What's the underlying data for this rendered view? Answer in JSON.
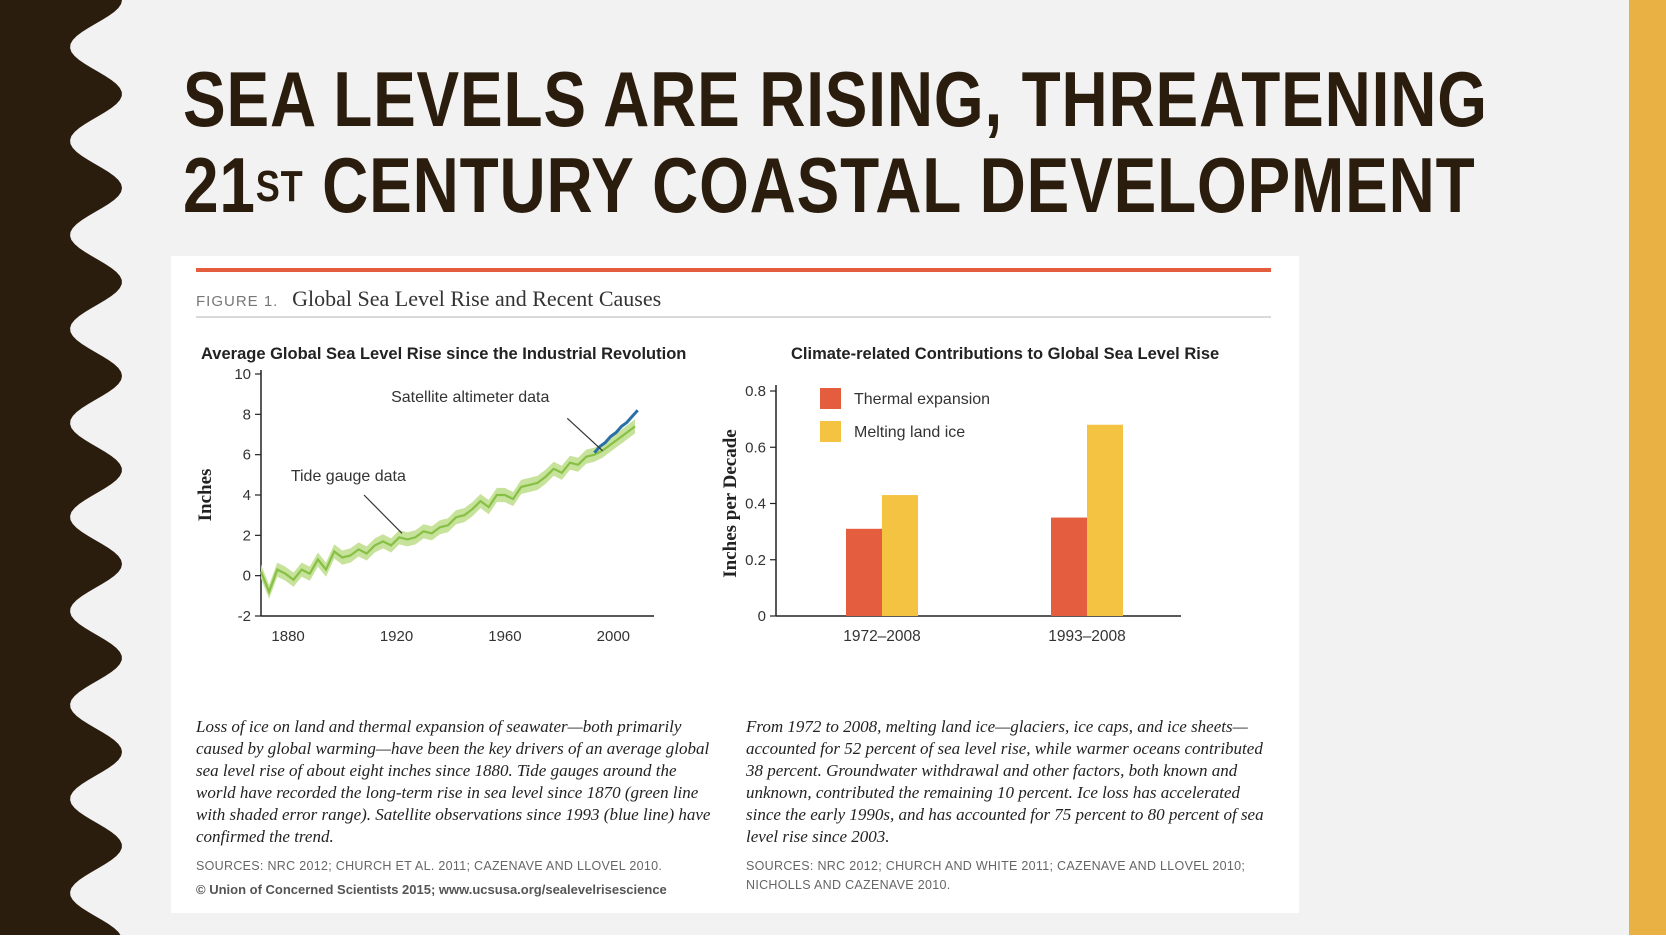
{
  "colors": {
    "left_band": "#2b1d0e",
    "right_band": "#e9b143",
    "title_text": "#2b1d0e",
    "accent_rule": "#e35d3e",
    "thermal": "#e35d3e",
    "ice": "#f4c342",
    "tide_line": "#86c044",
    "tide_band": "#c7e29a",
    "satellite_line": "#2b6fa8"
  },
  "slide": {
    "title_line1": "SEA LEVELS ARE RISING, THREATENING",
    "title_line2_a": "21",
    "title_line2_sup": "ST",
    "title_line2_b": " CENTURY COASTAL DEVELOPMENT"
  },
  "figure": {
    "label": "FIGURE 1.",
    "title": "Global Sea Level Rise and Recent Causes",
    "left_caption": "Loss of ice on land and thermal expansion of seawater—both primarily caused by global warming—have been the key drivers of an average global sea level rise of about eight inches since 1880. Tide gauges around the world have recorded the long-term rise in sea level since 1870 (green line with shaded error range). Satellite observations since 1993 (blue line) have confirmed the trend.",
    "left_sources": "SOURCES: NRC 2012; CHURCH ET AL. 2011; CAZENAVE AND LLOVEL 2010.",
    "copyright": "© Union of Concerned Scientists 2015; www.ucsusa.org/sealevelrisescience",
    "right_caption": "From 1972 to 2008, melting land ice—glaciers, ice caps, and ice sheets—accounted for 52 percent of sea level rise, while warmer oceans contributed 38 percent. Groundwater withdrawal and other factors, both known and unknown, contributed the remaining 10 percent. Ice loss has accelerated since the early 1990s, and has accounted for 75 percent to 80 percent of sea level rise since 2003.",
    "right_sources": "SOURCES: NRC 2012; CHURCH AND WHITE 2011; CAZENAVE AND LLOVEL 2010; NICHOLLS AND CAZENAVE 2010."
  },
  "chart_data": [
    {
      "type": "line",
      "title": "Average Global Sea Level Rise since the Industrial Revolution",
      "xlabel": "",
      "ylabel": "Inches",
      "xlim": [
        1870,
        2015
      ],
      "ylim": [
        -2,
        10
      ],
      "xticks": [
        1880,
        1920,
        1960,
        2000
      ],
      "yticks": [
        -2,
        0,
        2,
        4,
        6,
        8,
        10
      ],
      "grid": false,
      "annotations": [
        "Satellite altimeter data",
        "Tide gauge data"
      ],
      "series": [
        {
          "name": "Tide gauge data",
          "x": [
            1870,
            1873,
            1876,
            1879,
            1882,
            1885,
            1888,
            1891,
            1894,
            1897,
            1900,
            1903,
            1906,
            1909,
            1912,
            1915,
            1918,
            1921,
            1924,
            1927,
            1930,
            1933,
            1936,
            1939,
            1942,
            1945,
            1948,
            1951,
            1954,
            1957,
            1960,
            1963,
            1966,
            1969,
            1972,
            1975,
            1978,
            1981,
            1984,
            1987,
            1990,
            1993,
            1996,
            1999,
            2002,
            2005,
            2008
          ],
          "y": [
            0.2,
            -0.8,
            0.3,
            0.1,
            -0.2,
            0.3,
            0.1,
            0.8,
            0.3,
            1.2,
            0.9,
            1.0,
            1.3,
            1.1,
            1.5,
            1.7,
            1.5,
            1.9,
            1.8,
            1.9,
            2.2,
            2.1,
            2.4,
            2.5,
            2.9,
            3.0,
            3.3,
            3.7,
            3.4,
            4.0,
            4.0,
            3.8,
            4.4,
            4.5,
            4.6,
            4.9,
            5.3,
            5.1,
            5.6,
            5.5,
            5.9,
            6.0,
            6.2,
            6.5,
            6.8,
            7.1,
            7.4
          ],
          "error": 0.35
        },
        {
          "name": "Satellite altimeter data",
          "x": [
            1993,
            1995,
            1997,
            1999,
            2001,
            2003,
            2005,
            2007,
            2009
          ],
          "y": [
            6.1,
            6.4,
            6.6,
            6.9,
            7.1,
            7.4,
            7.6,
            7.9,
            8.2
          ]
        }
      ]
    },
    {
      "type": "bar",
      "title": "Climate-related Contributions to Global Sea Level Rise",
      "xlabel": "",
      "ylabel": "Inches per Decade",
      "categories": [
        "1972–2008",
        "1993–2008"
      ],
      "ylim": [
        0,
        0.8
      ],
      "yticks": [
        0,
        0.2,
        0.4,
        0.6,
        0.8
      ],
      "legend": "top-left",
      "grid": false,
      "series": [
        {
          "name": "Thermal expansion",
          "values": [
            0.31,
            0.35
          ]
        },
        {
          "name": "Melting land ice",
          "values": [
            0.43,
            0.68
          ]
        }
      ]
    }
  ]
}
